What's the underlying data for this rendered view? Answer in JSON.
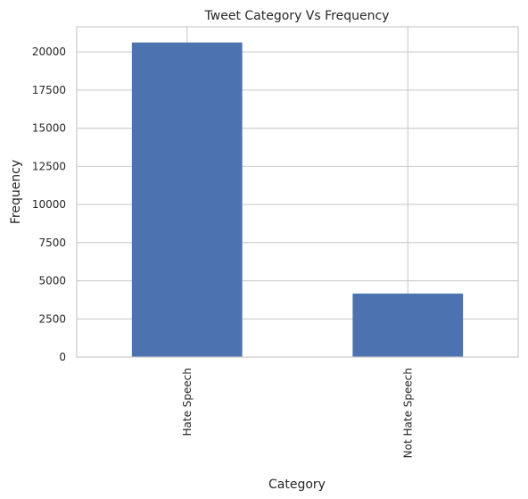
{
  "chart_data": {
    "type": "bar",
    "title": "Tweet Category Vs Frequency",
    "xlabel": "Category",
    "ylabel": "Frequency",
    "categories": [
      "Hate Speech",
      "Not Hate Speech"
    ],
    "values": [
      20620,
      4163
    ],
    "ylim": [
      0,
      21650
    ],
    "yticks": [
      0,
      2500,
      5000,
      7500,
      10000,
      12500,
      15000,
      17500,
      20000
    ],
    "grid": true,
    "bar_color": "#4c72b0",
    "grid_color": "#cccccc",
    "text_color": "#262626"
  }
}
